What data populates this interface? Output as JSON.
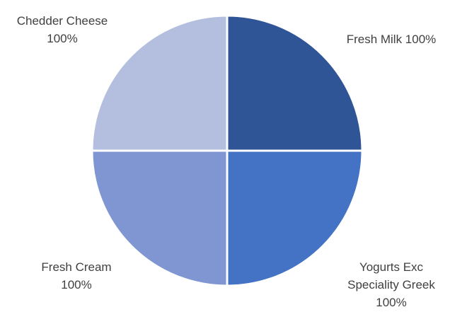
{
  "chart_data": {
    "type": "pie",
    "title": "",
    "start_angle_deg": 0,
    "slices": [
      {
        "label_lines": [
          "Fresh Milk 100%"
        ],
        "name": "Fresh Milk",
        "value": 100,
        "percent_label": "100%",
        "color": "#2f5597"
      },
      {
        "label_lines": [
          "Yogurts Exc",
          "Speciality Greek",
          "100%"
        ],
        "name": "Yogurts Exc Speciality Greek",
        "value": 100,
        "percent_label": "100%",
        "color": "#4472c4"
      },
      {
        "label_lines": [
          "Fresh Cream",
          "100%"
        ],
        "name": "Fresh Cream",
        "value": 100,
        "percent_label": "100%",
        "color": "#7f96d2"
      },
      {
        "label_lines": [
          "Chedder Cheese",
          "100%"
        ],
        "name": "Chedder Cheese",
        "value": 100,
        "percent_label": "100%",
        "color": "#b4bfe0"
      }
    ]
  }
}
